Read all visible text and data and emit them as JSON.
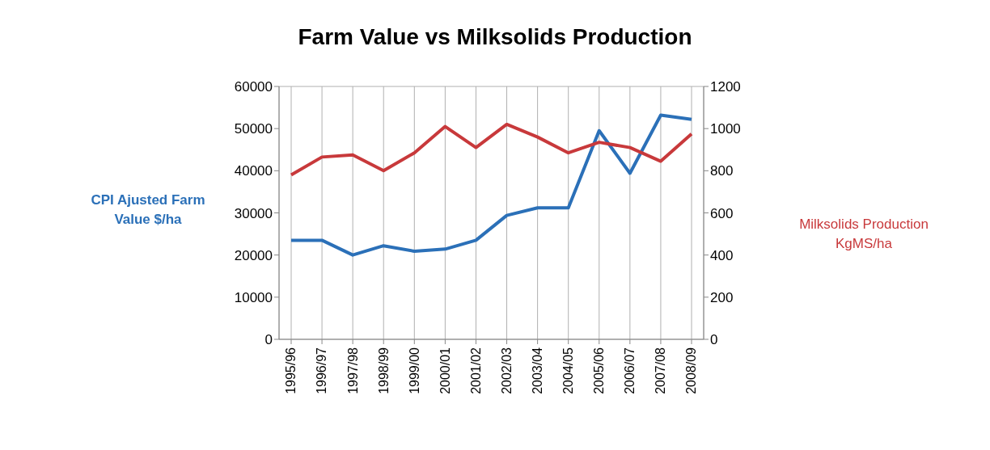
{
  "chart_data": {
    "type": "line",
    "title": "Farm Value vs Milksolids Production",
    "ylabel": "CPI Ajusted Farm Value $/ha",
    "y2label": "Milksolids Production KgMS/ha",
    "categories": [
      "1995/96",
      "1996/97",
      "1997/98",
      "1998/99",
      "1999/00",
      "2000/01",
      "2001/02",
      "2002/03",
      "2003/04",
      "2004/05",
      "2005/06",
      "2006/07",
      "2007/08",
      "2008/09"
    ],
    "series": [
      {
        "color": "#2b70b8",
        "values": [
          23500,
          23500,
          20000,
          22200,
          20900,
          21400,
          23500,
          29400,
          31200,
          31200,
          49500,
          39400,
          53200,
          52200
        ]
      },
      {
        "color": "#c8393b",
        "axis": "y2",
        "values": [
          780,
          865,
          875,
          800,
          885,
          1010,
          910,
          1020,
          960,
          885,
          935,
          910,
          845,
          975
        ]
      }
    ],
    "ylim": [
      0,
      60000
    ],
    "yticks": [
      0,
      10000,
      20000,
      30000,
      40000,
      50000,
      60000
    ],
    "y2lim": [
      0,
      1200
    ],
    "y2ticks": [
      0,
      200,
      400,
      600,
      800,
      1000,
      1200
    ],
    "grid": true,
    "marker": "none",
    "line_style": "solid"
  }
}
